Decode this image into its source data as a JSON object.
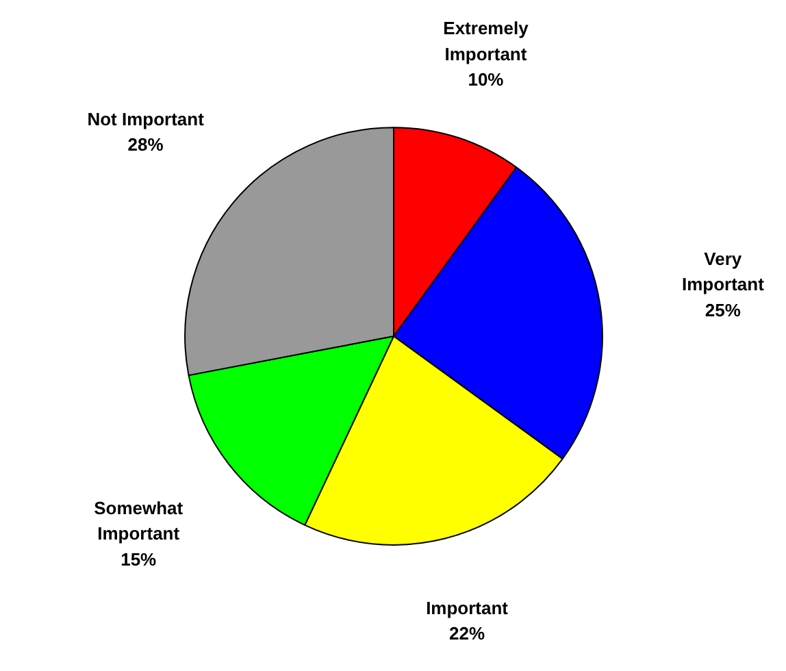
{
  "chart_data": {
    "type": "pie",
    "categories": [
      "Extremely\nImportant",
      "Very\nImportant",
      "Important",
      "Somewhat\nImportant",
      "Not Important"
    ],
    "values": [
      10,
      25,
      22,
      15,
      28
    ],
    "colors": [
      "#ff0000",
      "#0000ff",
      "#ffff00",
      "#00ff00",
      "#999999"
    ],
    "value_labels": [
      "10%",
      "25%",
      "22%",
      "15%",
      "28%"
    ],
    "legend": false
  }
}
